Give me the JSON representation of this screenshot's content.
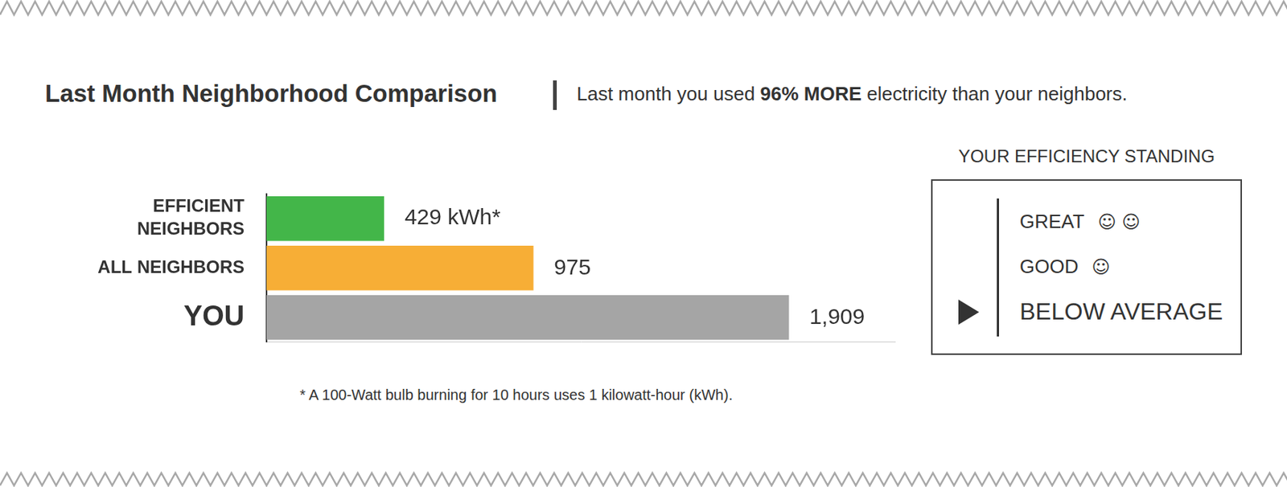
{
  "header": {
    "title": "Last Month Neighborhood Comparison",
    "summary": {
      "before": "Last month you used ",
      "emphasis": "96% MORE",
      "after": " electricity than your neighbors."
    }
  },
  "chart_data": {
    "type": "bar",
    "orientation": "horizontal",
    "categories": [
      "EFFICIENT NEIGHBORS",
      "ALL NEIGHBORS",
      "YOU"
    ],
    "values": [
      429,
      975,
      1909
    ],
    "value_labels": [
      "429 kWh*",
      "975",
      "1,909"
    ],
    "colors": [
      "#43b649",
      "#f7ae36",
      "#a5a5a5"
    ],
    "xlim": [
      0,
      2300
    ],
    "data_labels": true,
    "tick_labels": "y",
    "grid": false,
    "annotations": [
      "* A 100-Watt bulb burning for 10 hours uses 1 kilowatt-hour (kWh)."
    ]
  },
  "efficiency_standing": {
    "title": "YOUR EFFICIENCY STANDING",
    "levels": [
      {
        "label": "GREAT",
        "icons": "☺ ☺"
      },
      {
        "label": "GOOD",
        "icons": "☺"
      },
      {
        "label": "BELOW AVERAGE"
      }
    ],
    "selected": "BELOW AVERAGE"
  }
}
